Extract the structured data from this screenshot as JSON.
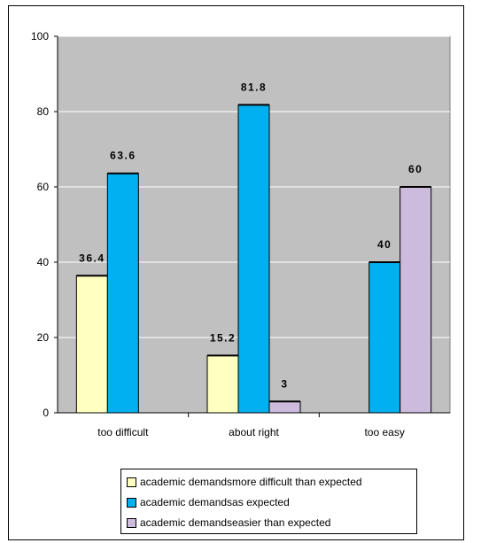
{
  "chart_data": {
    "type": "bar",
    "title": "",
    "xlabel": "",
    "ylabel": "",
    "ylim": [
      0,
      100
    ],
    "yticks": [
      0,
      20,
      40,
      60,
      80,
      100
    ],
    "categories": [
      "too difficult",
      "about right",
      "too easy"
    ],
    "series": [
      {
        "name": "academic demandsmore difficult than expected",
        "color": "#ffffc0",
        "values": [
          36.4,
          15.2,
          null
        ],
        "labels": [
          "36.4",
          "15.2",
          ""
        ]
      },
      {
        "name": "academic demandsas expected",
        "color": "#00b0f0",
        "values": [
          63.6,
          81.8,
          40
        ],
        "labels": [
          "63.6",
          "81.8",
          "40"
        ]
      },
      {
        "name": "academic demandseasier than expected",
        "color": "#ccbbdd",
        "values": [
          null,
          3,
          60
        ],
        "labels": [
          "",
          "3",
          "60"
        ]
      }
    ],
    "plot_background": "#c0c0c0",
    "grid": true,
    "legend_position": "bottom"
  }
}
